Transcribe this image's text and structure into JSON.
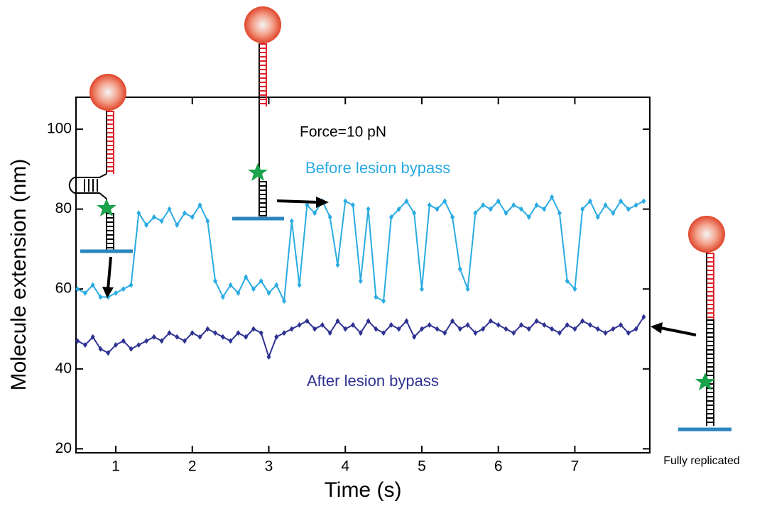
{
  "chart_data": {
    "type": "line",
    "xlabel": "Time (s)",
    "ylabel": "Molecule extension (nm)",
    "annotations": [
      "Force=10 pN",
      "Fully replicated"
    ],
    "x": [
      0.5,
      0.6,
      0.7,
      0.8,
      0.9,
      1.0,
      1.1,
      1.2,
      1.3,
      1.4,
      1.5,
      1.6,
      1.7,
      1.8,
      1.9,
      2.0,
      2.1,
      2.2,
      2.3,
      2.4,
      2.5,
      2.6,
      2.7,
      2.8,
      2.9,
      3.0,
      3.1,
      3.2,
      3.3,
      3.4,
      3.5,
      3.6,
      3.7,
      3.8,
      3.9,
      4.0,
      4.1,
      4.2,
      4.3,
      4.4,
      4.5,
      4.6,
      4.7,
      4.8,
      4.9,
      5.0,
      5.1,
      5.2,
      5.3,
      5.4,
      5.5,
      5.6,
      5.7,
      5.8,
      5.9,
      6.0,
      6.1,
      6.2,
      6.3,
      6.4,
      6.5,
      6.6,
      6.7,
      6.8,
      6.9,
      7.0,
      7.1,
      7.2,
      7.3,
      7.4,
      7.5,
      7.6,
      7.7,
      7.8,
      7.9
    ],
    "series": [
      {
        "name": "Before lesion bypass",
        "color": "#29abe2",
        "values": [
          60,
          59,
          61,
          58,
          58,
          59,
          60,
          61,
          79,
          76,
          78,
          77,
          80,
          76,
          79,
          78,
          81,
          77,
          62,
          58,
          61,
          59,
          63,
          60,
          62,
          59,
          61,
          57,
          77,
          61,
          81,
          79,
          82,
          78,
          66,
          82,
          81,
          62,
          80,
          58,
          57,
          78,
          80,
          82,
          79,
          60,
          81,
          80,
          82,
          78,
          65,
          60,
          79,
          81,
          80,
          82,
          79,
          81,
          80,
          78,
          81,
          80,
          83,
          79,
          62,
          60,
          80,
          82,
          78,
          81,
          79,
          82,
          80,
          81,
          82
        ]
      },
      {
        "name": "After lesion bypass",
        "color": "#2e3192",
        "values": [
          47,
          46,
          48,
          45,
          44,
          46,
          47,
          45,
          46,
          47,
          48,
          47,
          49,
          48,
          47,
          49,
          48,
          50,
          49,
          48,
          47,
          49,
          48,
          50,
          49,
          43,
          48,
          49,
          50,
          51,
          52,
          50,
          51,
          49,
          52,
          50,
          51,
          49,
          52,
          50,
          49,
          51,
          50,
          52,
          48,
          50,
          51,
          50,
          49,
          52,
          50,
          51,
          49,
          50,
          52,
          51,
          50,
          49,
          51,
          50,
          52,
          51,
          50,
          49,
          51,
          50,
          52,
          51,
          50,
          49,
          50,
          51,
          49,
          50,
          53
        ]
      }
    ],
    "xlim": [
      0.48,
      7.98
    ],
    "ylim": [
      19,
      108
    ],
    "xticks": [
      1,
      2,
      3,
      4,
      5,
      6,
      7
    ],
    "yticks": [
      20,
      40,
      60,
      80,
      100
    ]
  }
}
